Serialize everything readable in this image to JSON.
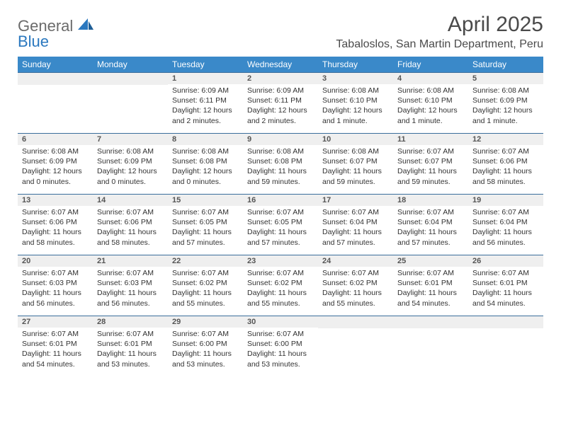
{
  "colors": {
    "header_bg": "#3a89c9",
    "row_divider": "#3a6e9c",
    "daynum_bg": "#efefef",
    "text_gray": "#4a4a4a",
    "logo_gray": "#6b6b6b",
    "logo_blue": "#2b78bf",
    "body_text": "#333333",
    "background": "#ffffff"
  },
  "typography": {
    "month_title_size": 30,
    "location_size": 16,
    "header_cell_size": 12,
    "daynum_size": 11,
    "body_size": 10.5,
    "logo_size": 22
  },
  "logo": {
    "text_general": "General",
    "text_blue": "Blue"
  },
  "title": "April 2025",
  "location": "Tabaloslos, San Martin Department, Peru",
  "weekdays": [
    "Sunday",
    "Monday",
    "Tuesday",
    "Wednesday",
    "Thursday",
    "Friday",
    "Saturday"
  ],
  "weeks": [
    [
      null,
      null,
      {
        "n": "1",
        "sr": "Sunrise: 6:09 AM",
        "ss": "Sunset: 6:11 PM",
        "dl": "Daylight: 12 hours and 2 minutes."
      },
      {
        "n": "2",
        "sr": "Sunrise: 6:09 AM",
        "ss": "Sunset: 6:11 PM",
        "dl": "Daylight: 12 hours and 2 minutes."
      },
      {
        "n": "3",
        "sr": "Sunrise: 6:08 AM",
        "ss": "Sunset: 6:10 PM",
        "dl": "Daylight: 12 hours and 1 minute."
      },
      {
        "n": "4",
        "sr": "Sunrise: 6:08 AM",
        "ss": "Sunset: 6:10 PM",
        "dl": "Daylight: 12 hours and 1 minute."
      },
      {
        "n": "5",
        "sr": "Sunrise: 6:08 AM",
        "ss": "Sunset: 6:09 PM",
        "dl": "Daylight: 12 hours and 1 minute."
      }
    ],
    [
      {
        "n": "6",
        "sr": "Sunrise: 6:08 AM",
        "ss": "Sunset: 6:09 PM",
        "dl": "Daylight: 12 hours and 0 minutes."
      },
      {
        "n": "7",
        "sr": "Sunrise: 6:08 AM",
        "ss": "Sunset: 6:09 PM",
        "dl": "Daylight: 12 hours and 0 minutes."
      },
      {
        "n": "8",
        "sr": "Sunrise: 6:08 AM",
        "ss": "Sunset: 6:08 PM",
        "dl": "Daylight: 12 hours and 0 minutes."
      },
      {
        "n": "9",
        "sr": "Sunrise: 6:08 AM",
        "ss": "Sunset: 6:08 PM",
        "dl": "Daylight: 11 hours and 59 minutes."
      },
      {
        "n": "10",
        "sr": "Sunrise: 6:08 AM",
        "ss": "Sunset: 6:07 PM",
        "dl": "Daylight: 11 hours and 59 minutes."
      },
      {
        "n": "11",
        "sr": "Sunrise: 6:07 AM",
        "ss": "Sunset: 6:07 PM",
        "dl": "Daylight: 11 hours and 59 minutes."
      },
      {
        "n": "12",
        "sr": "Sunrise: 6:07 AM",
        "ss": "Sunset: 6:06 PM",
        "dl": "Daylight: 11 hours and 58 minutes."
      }
    ],
    [
      {
        "n": "13",
        "sr": "Sunrise: 6:07 AM",
        "ss": "Sunset: 6:06 PM",
        "dl": "Daylight: 11 hours and 58 minutes."
      },
      {
        "n": "14",
        "sr": "Sunrise: 6:07 AM",
        "ss": "Sunset: 6:06 PM",
        "dl": "Daylight: 11 hours and 58 minutes."
      },
      {
        "n": "15",
        "sr": "Sunrise: 6:07 AM",
        "ss": "Sunset: 6:05 PM",
        "dl": "Daylight: 11 hours and 57 minutes."
      },
      {
        "n": "16",
        "sr": "Sunrise: 6:07 AM",
        "ss": "Sunset: 6:05 PM",
        "dl": "Daylight: 11 hours and 57 minutes."
      },
      {
        "n": "17",
        "sr": "Sunrise: 6:07 AM",
        "ss": "Sunset: 6:04 PM",
        "dl": "Daylight: 11 hours and 57 minutes."
      },
      {
        "n": "18",
        "sr": "Sunrise: 6:07 AM",
        "ss": "Sunset: 6:04 PM",
        "dl": "Daylight: 11 hours and 57 minutes."
      },
      {
        "n": "19",
        "sr": "Sunrise: 6:07 AM",
        "ss": "Sunset: 6:04 PM",
        "dl": "Daylight: 11 hours and 56 minutes."
      }
    ],
    [
      {
        "n": "20",
        "sr": "Sunrise: 6:07 AM",
        "ss": "Sunset: 6:03 PM",
        "dl": "Daylight: 11 hours and 56 minutes."
      },
      {
        "n": "21",
        "sr": "Sunrise: 6:07 AM",
        "ss": "Sunset: 6:03 PM",
        "dl": "Daylight: 11 hours and 56 minutes."
      },
      {
        "n": "22",
        "sr": "Sunrise: 6:07 AM",
        "ss": "Sunset: 6:02 PM",
        "dl": "Daylight: 11 hours and 55 minutes."
      },
      {
        "n": "23",
        "sr": "Sunrise: 6:07 AM",
        "ss": "Sunset: 6:02 PM",
        "dl": "Daylight: 11 hours and 55 minutes."
      },
      {
        "n": "24",
        "sr": "Sunrise: 6:07 AM",
        "ss": "Sunset: 6:02 PM",
        "dl": "Daylight: 11 hours and 55 minutes."
      },
      {
        "n": "25",
        "sr": "Sunrise: 6:07 AM",
        "ss": "Sunset: 6:01 PM",
        "dl": "Daylight: 11 hours and 54 minutes."
      },
      {
        "n": "26",
        "sr": "Sunrise: 6:07 AM",
        "ss": "Sunset: 6:01 PM",
        "dl": "Daylight: 11 hours and 54 minutes."
      }
    ],
    [
      {
        "n": "27",
        "sr": "Sunrise: 6:07 AM",
        "ss": "Sunset: 6:01 PM",
        "dl": "Daylight: 11 hours and 54 minutes."
      },
      {
        "n": "28",
        "sr": "Sunrise: 6:07 AM",
        "ss": "Sunset: 6:01 PM",
        "dl": "Daylight: 11 hours and 53 minutes."
      },
      {
        "n": "29",
        "sr": "Sunrise: 6:07 AM",
        "ss": "Sunset: 6:00 PM",
        "dl": "Daylight: 11 hours and 53 minutes."
      },
      {
        "n": "30",
        "sr": "Sunrise: 6:07 AM",
        "ss": "Sunset: 6:00 PM",
        "dl": "Daylight: 11 hours and 53 minutes."
      },
      null,
      null,
      null
    ]
  ]
}
